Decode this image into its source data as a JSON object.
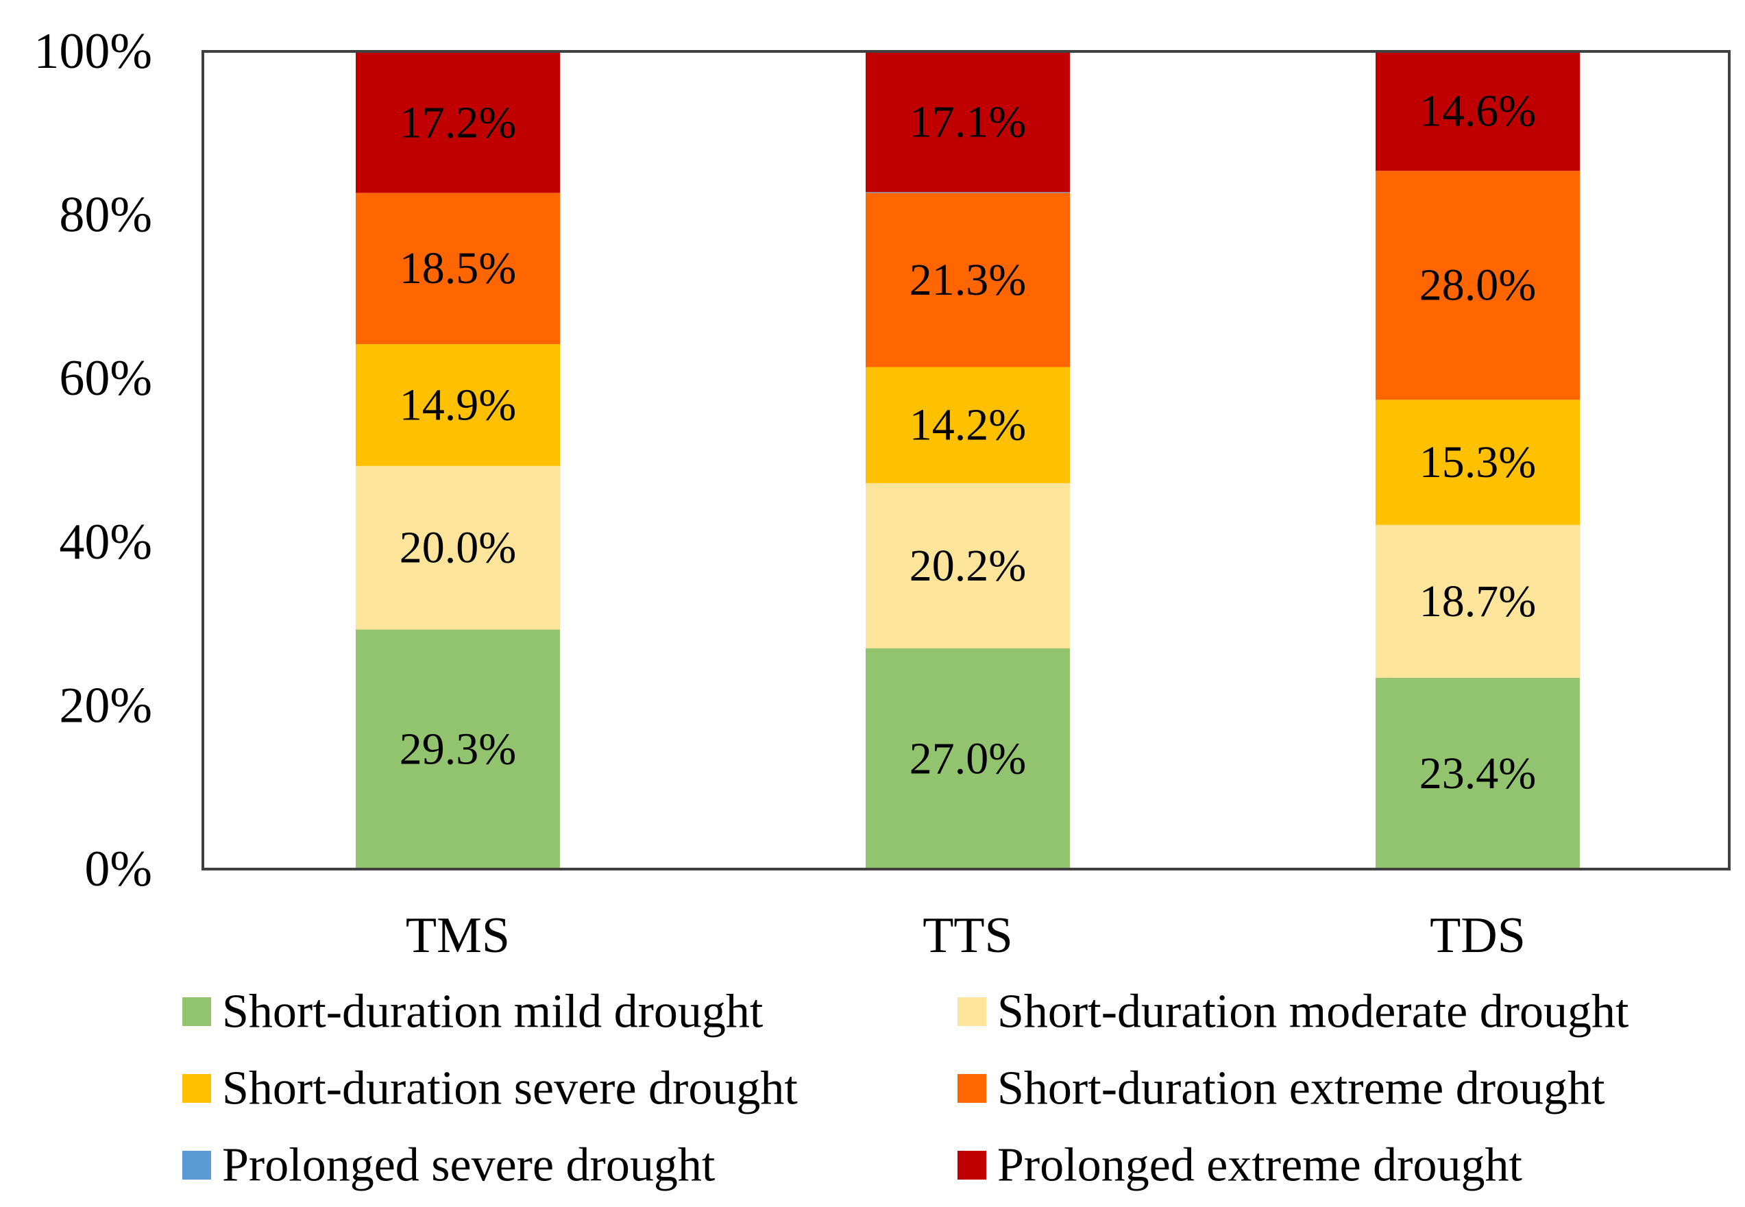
{
  "chart_data": {
    "type": "bar",
    "stacked": true,
    "percent": true,
    "categories": [
      "TMS",
      "TTS",
      "TDS"
    ],
    "ylim": [
      0,
      100
    ],
    "yticks": [
      0,
      20,
      40,
      60,
      80,
      100
    ],
    "ytick_labels": [
      "0%",
      "20%",
      "40%",
      "60%",
      "80%",
      "100%"
    ],
    "grid": false,
    "legend_position": "bottom",
    "series": [
      {
        "name": "Short-duration mild drought",
        "color": "#92C46F",
        "values": [
          29.3,
          27.0,
          23.4
        ],
        "labels": [
          "29.3%",
          "27.0%",
          "23.4%"
        ]
      },
      {
        "name": "Short-duration moderate drought",
        "color": "#FDE49B",
        "values": [
          20.0,
          20.2,
          18.7
        ],
        "labels": [
          "20.0%",
          "20.2%",
          "18.7%"
        ]
      },
      {
        "name": "Short-duration severe drought",
        "color": "#FFC000",
        "values": [
          14.9,
          14.2,
          15.3
        ],
        "labels": [
          "14.9%",
          "14.2%",
          "15.3%"
        ]
      },
      {
        "name": "Short-duration extreme drought",
        "color": "#FF6600",
        "values": [
          18.5,
          21.3,
          28.0
        ],
        "labels": [
          "18.5%",
          "21.3%",
          "28.0%"
        ]
      },
      {
        "name": "Prolonged severe drought",
        "color": "#5B9BD5",
        "values": [
          0.0,
          0.1,
          0.0
        ],
        "labels": [
          "",
          "",
          ""
        ]
      },
      {
        "name": "Prolonged extreme drought",
        "color": "#C00000",
        "values": [
          17.2,
          17.1,
          14.6
        ],
        "labels": [
          "17.2%",
          "17.1%",
          "14.6%"
        ]
      }
    ]
  }
}
